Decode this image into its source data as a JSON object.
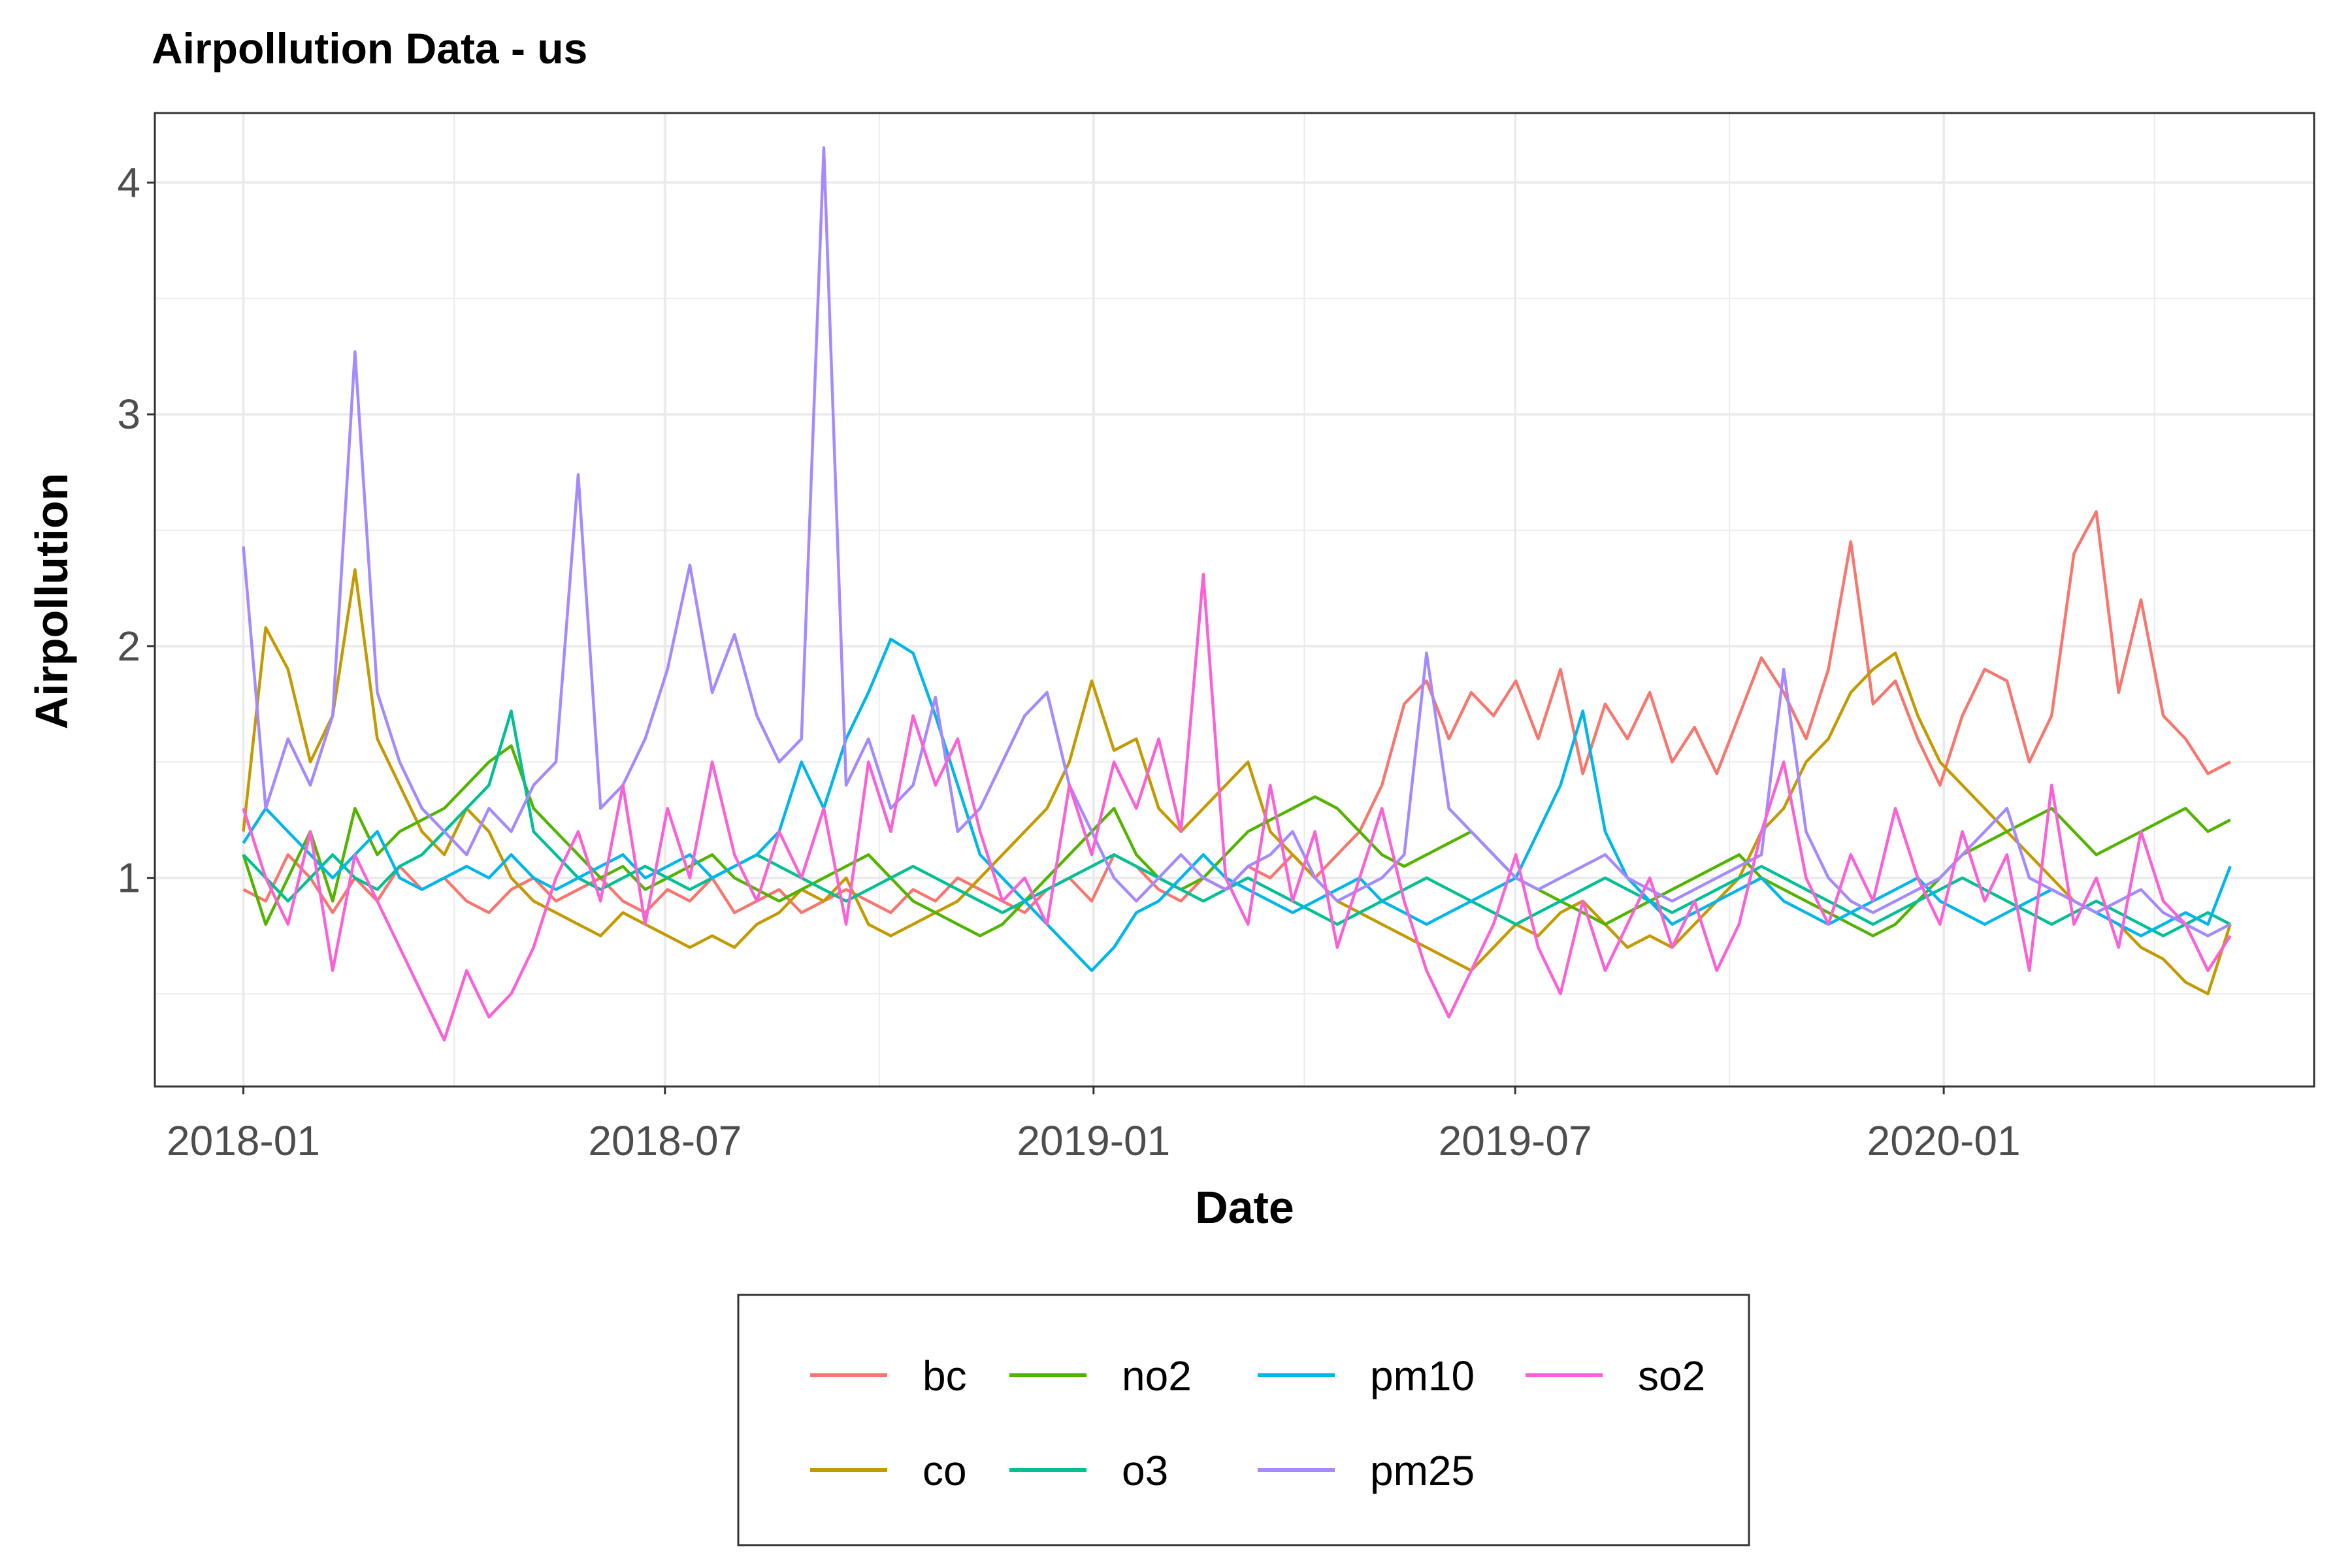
{
  "chart_data": {
    "type": "line",
    "title": "Airpollution Data - us",
    "xlabel": "Date",
    "ylabel": "Airpollution",
    "x_ticks": [
      "2018-01",
      "2018-07",
      "2019-01",
      "2019-07",
      "2020-01"
    ],
    "y_ticks": [
      "1",
      "2",
      "3",
      "4"
    ],
    "xlim": [
      "2017-11-24",
      "2020-06-08"
    ],
    "ylim": [
      0.1,
      4.3
    ],
    "x_range": [
      "2018-01-01",
      "2020-05-03"
    ],
    "grid": true,
    "legend_position": "bottom",
    "series": [
      {
        "name": "bc",
        "color": "#F8766D",
        "values": [
          0.95,
          0.9,
          1.1,
          1.0,
          0.85,
          1.0,
          0.9,
          1.05,
          0.95,
          1.0,
          0.9,
          0.85,
          0.95,
          1.0,
          0.9,
          0.95,
          1.0,
          0.9,
          0.85,
          0.95,
          0.9,
          1.0,
          0.85,
          0.9,
          0.95,
          0.85,
          0.9,
          0.95,
          0.9,
          0.85,
          0.95,
          0.9,
          1.0,
          0.95,
          0.9,
          0.85,
          0.95,
          1.0,
          0.9,
          1.1,
          1.05,
          0.95,
          0.9,
          1.0,
          0.95,
          1.05,
          1.0,
          1.1,
          1.0,
          1.1,
          1.2,
          1.4,
          1.75,
          1.85,
          1.6,
          1.8,
          1.7,
          1.85,
          1.6,
          1.9,
          1.45,
          1.75,
          1.6,
          1.8,
          1.5,
          1.65,
          1.45,
          1.7,
          1.95,
          1.8,
          1.6,
          1.9,
          2.45,
          1.75,
          1.85,
          1.6,
          1.4,
          1.7,
          1.9,
          1.85,
          1.5,
          1.7,
          2.4,
          2.58,
          1.8,
          2.2,
          1.7,
          1.6,
          1.45,
          1.5
        ]
      },
      {
        "name": "co",
        "color": "#C49A00",
        "values": [
          1.2,
          2.08,
          1.9,
          1.5,
          1.7,
          2.33,
          1.6,
          1.4,
          1.2,
          1.1,
          1.3,
          1.2,
          1.0,
          0.9,
          0.85,
          0.8,
          0.75,
          0.85,
          0.8,
          0.75,
          0.7,
          0.75,
          0.7,
          0.8,
          0.85,
          0.95,
          0.9,
          1.0,
          0.8,
          0.75,
          0.8,
          0.85,
          0.9,
          1.0,
          1.1,
          1.2,
          1.3,
          1.5,
          1.85,
          1.55,
          1.6,
          1.3,
          1.2,
          1.3,
          1.4,
          1.5,
          1.2,
          1.1,
          1.0,
          0.9,
          0.85,
          0.8,
          0.75,
          0.7,
          0.65,
          0.6,
          0.7,
          0.8,
          0.75,
          0.85,
          0.9,
          0.8,
          0.7,
          0.75,
          0.7,
          0.8,
          0.9,
          1.0,
          1.2,
          1.3,
          1.5,
          1.6,
          1.8,
          1.9,
          1.97,
          1.7,
          1.5,
          1.4,
          1.3,
          1.2,
          1.1,
          1.0,
          0.9,
          0.85,
          0.8,
          0.7,
          0.65,
          0.55,
          0.5,
          0.8
        ]
      },
      {
        "name": "no2",
        "color": "#53B400",
        "values": [
          1.1,
          0.8,
          1.0,
          1.2,
          0.9,
          1.3,
          1.1,
          1.2,
          1.25,
          1.3,
          1.4,
          1.5,
          1.57,
          1.3,
          1.2,
          1.1,
          1.0,
          1.05,
          0.95,
          1.0,
          1.05,
          1.1,
          1.0,
          0.95,
          0.9,
          0.95,
          1.0,
          1.05,
          1.1,
          1.0,
          0.9,
          0.85,
          0.8,
          0.75,
          0.8,
          0.9,
          1.0,
          1.1,
          1.2,
          1.3,
          1.1,
          1.0,
          0.95,
          1.0,
          1.1,
          1.2,
          1.25,
          1.3,
          1.35,
          1.3,
          1.2,
          1.1,
          1.05,
          1.1,
          1.15,
          1.2,
          1.1,
          1.0,
          0.95,
          0.9,
          0.85,
          0.8,
          0.85,
          0.9,
          0.95,
          1.0,
          1.05,
          1.1,
          1.0,
          0.95,
          0.9,
          0.85,
          0.8,
          0.75,
          0.8,
          0.9,
          1.0,
          1.1,
          1.15,
          1.2,
          1.25,
          1.3,
          1.2,
          1.1,
          1.15,
          1.2,
          1.25,
          1.3,
          1.2,
          1.25
        ]
      },
      {
        "name": "o3",
        "color": "#00C094",
        "values": [
          1.1,
          1.0,
          0.9,
          1.0,
          1.1,
          1.0,
          0.95,
          1.05,
          1.1,
          1.2,
          1.3,
          1.4,
          1.72,
          1.2,
          1.1,
          1.0,
          0.95,
          1.0,
          1.05,
          1.0,
          0.95,
          1.0,
          1.05,
          1.1,
          1.05,
          1.0,
          0.95,
          0.9,
          0.95,
          1.0,
          1.05,
          1.0,
          0.95,
          0.9,
          0.85,
          0.9,
          0.95,
          1.0,
          1.05,
          1.1,
          1.05,
          1.0,
          0.95,
          0.9,
          0.95,
          1.0,
          0.95,
          0.9,
          0.85,
          0.8,
          0.85,
          0.9,
          0.95,
          1.0,
          0.95,
          0.9,
          0.85,
          0.8,
          0.85,
          0.9,
          0.95,
          1.0,
          0.95,
          0.9,
          0.85,
          0.9,
          0.95,
          1.0,
          1.05,
          1.0,
          0.95,
          0.9,
          0.85,
          0.8,
          0.85,
          0.9,
          0.95,
          1.0,
          0.95,
          0.9,
          0.85,
          0.8,
          0.85,
          0.9,
          0.85,
          0.8,
          0.75,
          0.8,
          0.85,
          0.8
        ]
      },
      {
        "name": "pm10",
        "color": "#00B6EB",
        "values": [
          1.15,
          1.3,
          1.2,
          1.1,
          1.0,
          1.1,
          1.2,
          1.0,
          0.95,
          1.0,
          1.05,
          1.0,
          1.1,
          1.0,
          0.95,
          1.0,
          1.05,
          1.1,
          1.0,
          1.05,
          1.1,
          1.0,
          1.05,
          1.1,
          1.2,
          1.5,
          1.3,
          1.6,
          1.8,
          2.03,
          1.97,
          1.7,
          1.4,
          1.1,
          1.0,
          0.9,
          0.8,
          0.7,
          0.6,
          0.7,
          0.85,
          0.9,
          1.0,
          1.1,
          1.0,
          0.95,
          0.9,
          0.85,
          0.9,
          0.95,
          1.0,
          0.9,
          0.85,
          0.8,
          0.85,
          0.9,
          0.95,
          1.0,
          1.2,
          1.4,
          1.72,
          1.2,
          1.0,
          0.9,
          0.8,
          0.85,
          0.9,
          0.95,
          1.0,
          0.9,
          0.85,
          0.8,
          0.85,
          0.9,
          0.95,
          1.0,
          0.9,
          0.85,
          0.8,
          0.85,
          0.9,
          0.95,
          0.9,
          0.85,
          0.8,
          0.75,
          0.8,
          0.85,
          0.8,
          1.05
        ]
      },
      {
        "name": "pm25",
        "color": "#A58AFF",
        "values": [
          2.43,
          1.3,
          1.6,
          1.4,
          1.7,
          3.27,
          1.8,
          1.5,
          1.3,
          1.2,
          1.1,
          1.3,
          1.2,
          1.4,
          1.5,
          2.74,
          1.3,
          1.4,
          1.6,
          1.9,
          2.35,
          1.8,
          2.05,
          1.7,
          1.5,
          1.6,
          4.15,
          1.4,
          1.6,
          1.3,
          1.4,
          1.78,
          1.2,
          1.3,
          1.5,
          1.7,
          1.8,
          1.4,
          1.2,
          1.0,
          0.9,
          1.0,
          1.1,
          1.0,
          0.95,
          1.05,
          1.1,
          1.2,
          1.0,
          0.9,
          0.95,
          1.0,
          1.1,
          1.97,
          1.3,
          1.2,
          1.1,
          1.0,
          0.95,
          1.0,
          1.05,
          1.1,
          1.0,
          0.95,
          0.9,
          0.95,
          1.0,
          1.05,
          1.1,
          1.9,
          1.2,
          1.0,
          0.9,
          0.85,
          0.9,
          0.95,
          1.0,
          1.1,
          1.2,
          1.3,
          1.0,
          0.95,
          0.9,
          0.85,
          0.9,
          0.95,
          0.85,
          0.8,
          0.75,
          0.8
        ]
      },
      {
        "name": "so2",
        "color": "#FB61D7",
        "values": [
          1.3,
          1.0,
          0.8,
          1.2,
          0.6,
          1.1,
          0.9,
          0.7,
          0.5,
          0.3,
          0.6,
          0.4,
          0.5,
          0.7,
          1.0,
          1.2,
          0.9,
          1.4,
          0.8,
          1.3,
          1.0,
          1.5,
          1.1,
          0.9,
          1.2,
          1.0,
          1.3,
          0.8,
          1.5,
          1.2,
          1.7,
          1.4,
          1.6,
          1.2,
          0.9,
          1.0,
          0.8,
          1.4,
          1.1,
          1.5,
          1.3,
          1.6,
          1.2,
          2.31,
          1.0,
          0.8,
          1.4,
          0.9,
          1.2,
          0.7,
          1.0,
          1.3,
          0.9,
          0.6,
          0.4,
          0.6,
          0.8,
          1.1,
          0.7,
          0.5,
          0.9,
          0.6,
          0.8,
          1.0,
          0.7,
          0.9,
          0.6,
          0.8,
          1.2,
          1.5,
          1.0,
          0.8,
          1.1,
          0.9,
          1.3,
          1.0,
          0.8,
          1.2,
          0.9,
          1.1,
          0.6,
          1.4,
          0.8,
          1.0,
          0.7,
          1.2,
          0.9,
          0.8,
          0.6,
          0.75
        ]
      }
    ]
  }
}
